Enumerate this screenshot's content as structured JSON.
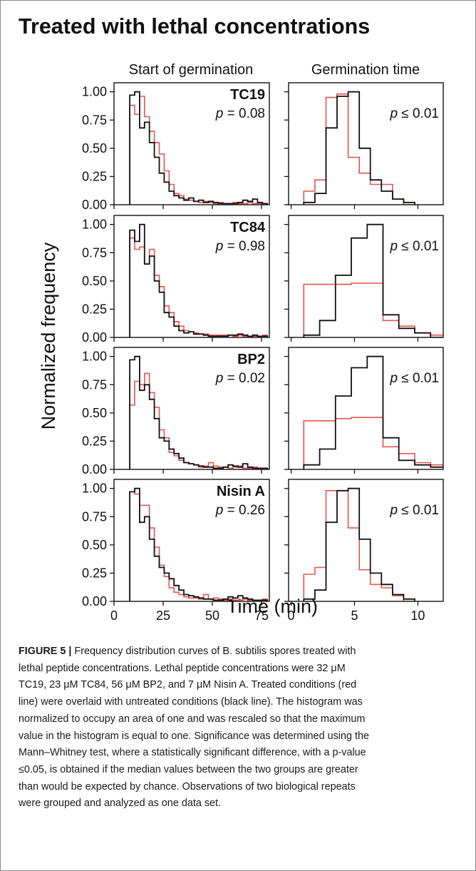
{
  "figure": {
    "title": "Treated with lethal concentrations",
    "column_titles": [
      "Start of germination",
      "Germination time"
    ],
    "ylabel": "Normalized frequency",
    "xlabel": "Time (min)"
  },
  "caption": {
    "label": "FIGURE 5 |",
    "lines": [
      " Frequency distribution curves of B. subtilis spores treated with",
      "lethal peptide concentrations. Lethal peptide concentrations were 32 μM",
      "TC19, 23 μM TC84, 56 μM BP2, and 7 μM Nisin A. Treated conditions (red",
      "line) were overlaid with untreated conditions (black line). The histogram was",
      "normalized to occupy an area of one and was rescaled so that the maximum",
      "value in the histogram is equal to one. Significance was determined using the",
      "Mann–Whitney test, where a statistically significant difference, with a p-value",
      "≤0.05, is obtained if the median values between the two groups are greater",
      "than would be expected by chance. Observations of two biological repeats",
      "were grouped and analyzed as one data set."
    ]
  },
  "colors": {
    "treated": "#e8534f",
    "untreated": "#111111",
    "axis": "#111111"
  },
  "chart_data": {
    "type": "histogram",
    "y_ticks": [
      "1.00",
      "0.75",
      "0.50",
      "0.25",
      "0.00"
    ],
    "ylim": [
      0,
      1.08
    ],
    "left_x_ticks": [
      "0",
      "25",
      "50",
      "75"
    ],
    "left_xlim": [
      0,
      79
    ],
    "right_x_ticks": [
      "0",
      "5",
      "10"
    ],
    "right_xlim": [
      -0.2,
      12
    ],
    "series_legend": [
      "Treated (red)",
      "Untreated (black)"
    ],
    "rows": [
      {
        "peptide": "TC19",
        "start": {
          "p_text": "p = 0.08",
          "bin_start": 8,
          "bin_width": 2.5,
          "untreated": [
            0.97,
            1.0,
            0.68,
            0.73,
            0.55,
            0.42,
            0.28,
            0.2,
            0.12,
            0.08,
            0.06,
            0.04,
            0.06,
            0.03,
            0.04,
            0.02,
            0.03,
            0.02,
            0.01,
            0.01,
            0.01,
            0.01,
            0.02,
            0.04,
            0.03,
            0.05,
            0.02,
            0.01
          ],
          "treated": [
            0.88,
            0.8,
            0.96,
            0.78,
            0.65,
            0.55,
            0.45,
            0.3,
            0.18,
            0.1,
            0.08,
            0.05,
            0.04,
            0.03,
            0.02,
            0.03,
            0.02,
            0.01,
            0.02,
            0.01,
            0.01,
            0.02,
            0.01,
            0.01,
            0.02,
            0.01,
            0.01,
            0.01
          ]
        },
        "time": {
          "p_text": "p ≤ 0.01",
          "bin_start": 1,
          "bin_width": 0.875,
          "untreated": [
            0.02,
            0.1,
            0.68,
            0.96,
            1.0,
            0.5,
            0.22,
            0.12,
            0.05,
            0.02
          ],
          "treated": [
            0.12,
            0.22,
            0.95,
            0.98,
            0.42,
            0.28,
            0.18,
            0.18,
            0.05,
            0.0
          ]
        }
      },
      {
        "peptide": "TC84",
        "start": {
          "p_text": "p = 0.98",
          "bin_start": 8,
          "bin_width": 2.5,
          "untreated": [
            0.95,
            0.85,
            1.0,
            0.65,
            0.72,
            0.5,
            0.4,
            0.22,
            0.18,
            0.1,
            0.06,
            0.04,
            0.05,
            0.03,
            0.03,
            0.02,
            0.01,
            0.01,
            0.01,
            0.01,
            0.02,
            0.02,
            0.03,
            0.02,
            0.01,
            0.02,
            0.01,
            0.01
          ],
          "treated": [
            0.88,
            0.78,
            0.8,
            0.65,
            0.78,
            0.55,
            0.45,
            0.28,
            0.22,
            0.14,
            0.1,
            0.06,
            0.05,
            0.04,
            0.03,
            0.03,
            0.02,
            0.02,
            0.02,
            0.02,
            0.02,
            0.01,
            0.02,
            0.01,
            0.01,
            0.01,
            0.01,
            0.02
          ]
        },
        "time": {
          "p_text": "p ≤ 0.01",
          "bin_start": 1,
          "bin_width": 1.25,
          "untreated": [
            0.02,
            0.15,
            0.55,
            0.88,
            1.0,
            0.2,
            0.08,
            0.04,
            0.0
          ],
          "treated": [
            0.47,
            0.47,
            0.47,
            0.48,
            0.48,
            0.15,
            0.1,
            0.04,
            0.02
          ]
        }
      },
      {
        "peptide": "BP2",
        "start": {
          "p_text": "p = 0.02",
          "bin_start": 8,
          "bin_width": 2.5,
          "untreated": [
            0.97,
            1.0,
            0.7,
            0.75,
            0.62,
            0.45,
            0.28,
            0.25,
            0.18,
            0.14,
            0.1,
            0.06,
            0.05,
            0.04,
            0.03,
            0.02,
            0.02,
            0.01,
            0.01,
            0.02,
            0.04,
            0.03,
            0.02,
            0.05,
            0.02,
            0.01,
            0.01,
            0.01
          ],
          "treated": [
            0.57,
            0.78,
            0.75,
            0.85,
            0.68,
            0.55,
            0.35,
            0.28,
            0.15,
            0.12,
            0.08,
            0.06,
            0.05,
            0.04,
            0.02,
            0.03,
            0.06,
            0.03,
            0.02,
            0.02,
            0.01,
            0.02,
            0.03,
            0.01,
            0.01,
            0.02,
            0.01,
            0.01
          ]
        },
        "time": {
          "p_text": "p ≤ 0.01",
          "bin_start": 1,
          "bin_width": 1.25,
          "untreated": [
            0.04,
            0.18,
            0.65,
            0.9,
            1.0,
            0.28,
            0.08,
            0.04,
            0.02
          ],
          "treated": [
            0.43,
            0.43,
            0.45,
            0.46,
            0.46,
            0.2,
            0.14,
            0.06,
            0.04
          ]
        }
      },
      {
        "peptide": "Nisin A",
        "start": {
          "p_text": "p = 0.26",
          "bin_start": 8,
          "bin_width": 2.5,
          "untreated": [
            0.97,
            1.0,
            0.7,
            0.75,
            0.55,
            0.4,
            0.3,
            0.25,
            0.2,
            0.14,
            0.1,
            0.06,
            0.05,
            0.04,
            0.03,
            0.02,
            0.02,
            0.01,
            0.01,
            0.02,
            0.04,
            0.03,
            0.05,
            0.03,
            0.02,
            0.01,
            0.01,
            0.01
          ],
          "treated": [
            0.97,
            0.95,
            0.85,
            0.85,
            0.65,
            0.48,
            0.32,
            0.22,
            0.12,
            0.08,
            0.06,
            0.04,
            0.03,
            0.03,
            0.02,
            0.06,
            0.02,
            0.03,
            0.02,
            0.01,
            0.02,
            0.01,
            0.01,
            0.02,
            0.01,
            0.01,
            0.01,
            0.02
          ]
        },
        "time": {
          "p_text": "p ≤ 0.01",
          "bin_start": 1,
          "bin_width": 0.875,
          "untreated": [
            0.02,
            0.1,
            0.7,
            0.98,
            1.0,
            0.55,
            0.25,
            0.15,
            0.06,
            0.02
          ],
          "treated": [
            0.24,
            0.3,
            0.98,
            0.98,
            0.65,
            0.28,
            0.15,
            0.12,
            0.05,
            0.0
          ]
        }
      }
    ]
  }
}
